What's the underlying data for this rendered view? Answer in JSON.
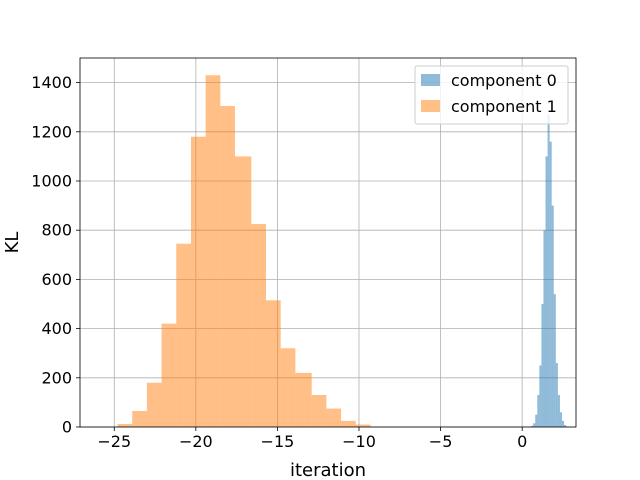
{
  "chart_data": {
    "type": "bar",
    "title": "",
    "xlabel": "iteration",
    "ylabel": "KL",
    "xlim": [
      -27.1,
      3.3
    ],
    "ylim": [
      0,
      1500
    ],
    "xticks": [
      -25,
      -20,
      -15,
      -10,
      -5,
      0
    ],
    "yticks": [
      0,
      200,
      400,
      600,
      800,
      1000,
      1200,
      1400
    ],
    "grid": true,
    "legend_placement": "top-right",
    "series": [
      {
        "name": "component 0",
        "color": "#1f77b4",
        "alpha": 0.5,
        "bin_edges": [
          0.55,
          0.676,
          0.802,
          0.928,
          1.054,
          1.18,
          1.306,
          1.432,
          1.558,
          1.684,
          1.81,
          1.936,
          2.062,
          2.188,
          2.314,
          2.44,
          2.566,
          2.692,
          2.818
        ],
        "counts": [
          5,
          15,
          50,
          130,
          250,
          500,
          800,
          1100,
          1270,
          1160,
          900,
          540,
          260,
          130,
          60,
          25,
          8,
          2
        ]
      },
      {
        "name": "component 1",
        "color": "#ff7f0e",
        "alpha": 0.5,
        "bin_edges": [
          -25.8,
          -24.8,
          -23.9,
          -23.0,
          -22.1,
          -21.2,
          -20.3,
          -19.4,
          -18.5,
          -17.6,
          -16.6,
          -15.7,
          -14.8,
          -13.9,
          -12.9,
          -12.0,
          -11.1,
          -10.2,
          -9.3
        ],
        "counts": [
          1,
          12,
          65,
          180,
          420,
          745,
          1180,
          1430,
          1305,
          1100,
          825,
          515,
          320,
          220,
          130,
          75,
          25,
          10
        ]
      }
    ]
  }
}
